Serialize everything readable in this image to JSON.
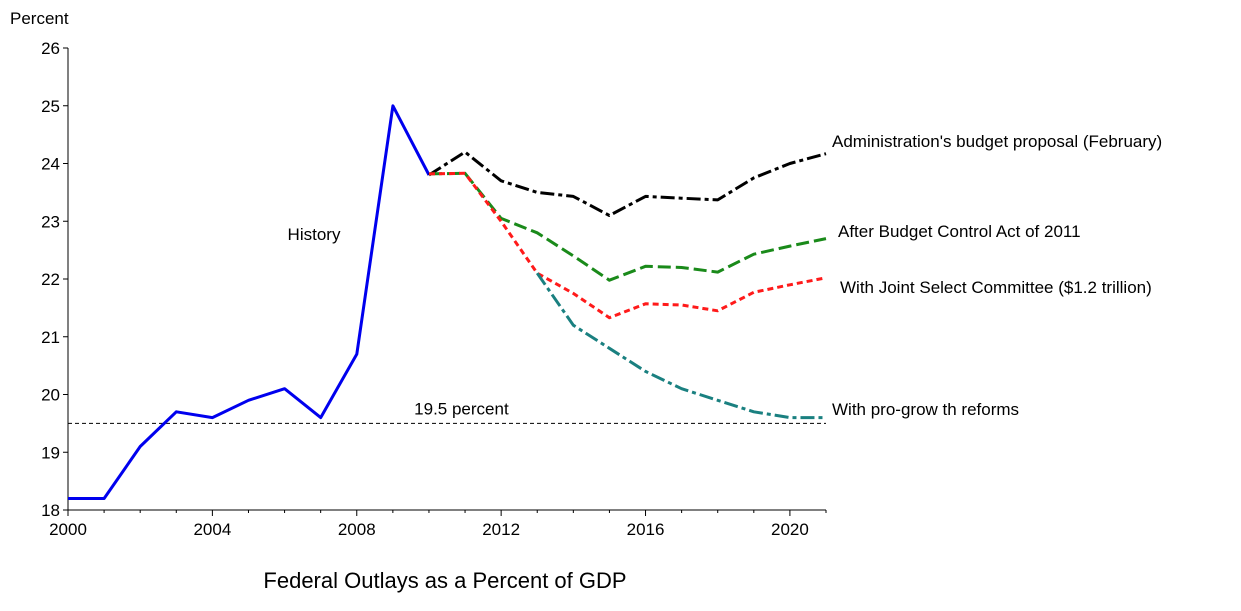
{
  "caption": "Federal Outlays as a Percent of GDP",
  "chart_data": {
    "type": "line",
    "ylabel": "Percent",
    "xlim": [
      2000,
      2021
    ],
    "ylim": [
      18,
      26
    ],
    "x_ticks": [
      2000,
      2004,
      2008,
      2012,
      2016,
      2020
    ],
    "x_tick_labels": [
      "2000",
      "2004",
      "2008",
      "2012",
      "2016",
      "2020"
    ],
    "y_ticks": [
      18,
      19,
      20,
      21,
      22,
      23,
      24,
      25,
      26
    ],
    "y_tick_labels": [
      "18",
      "19",
      "20",
      "21",
      "22",
      "23",
      "24",
      "25",
      "26"
    ],
    "grid": false,
    "reference_line": {
      "value": 19.5,
      "label": "19.5 percent",
      "color": "#000000"
    },
    "series": [
      {
        "name": "History",
        "color": "#0000ee",
        "style": "solid",
        "x": [
          2000,
          2001,
          2002,
          2003,
          2004,
          2005,
          2006,
          2007,
          2008,
          2009,
          2010
        ],
        "values": [
          18.2,
          18.2,
          19.1,
          19.7,
          19.6,
          19.9,
          20.1,
          19.6,
          20.7,
          25.0,
          23.8
        ]
      },
      {
        "name": "Administration's budget proposal (February)",
        "color": "#000000",
        "style": "dashdot",
        "x": [
          2010,
          2011,
          2012,
          2013,
          2014,
          2015,
          2016,
          2017,
          2018,
          2019,
          2020,
          2021
        ],
        "values": [
          23.8,
          24.2,
          23.7,
          23.5,
          23.43,
          23.1,
          23.43,
          23.4,
          23.37,
          23.75,
          24.0,
          24.17
        ]
      },
      {
        "name": "After Budget Control Act of 2011",
        "color": "#1a8a1a",
        "style": "dashed",
        "x": [
          2010,
          2011,
          2012,
          2013,
          2014,
          2015,
          2016,
          2017,
          2018,
          2019,
          2020,
          2021
        ],
        "values": [
          23.82,
          23.83,
          23.05,
          22.8,
          22.4,
          21.98,
          22.22,
          22.2,
          22.12,
          22.43,
          22.57,
          22.7
        ]
      },
      {
        "name": "With Joint Select Committee ($1.2 trillion)",
        "color": "#ff1a1a",
        "style": "dotted",
        "x": [
          2010,
          2011,
          2012,
          2013,
          2014,
          2015,
          2016,
          2017,
          2018,
          2019,
          2020,
          2021
        ],
        "values": [
          23.82,
          23.83,
          23.0,
          22.1,
          21.75,
          21.33,
          21.57,
          21.55,
          21.45,
          21.77,
          21.9,
          22.02
        ]
      },
      {
        "name": "With pro-growth reforms",
        "color": "#1a8080",
        "style": "dashdot",
        "x": [
          2013,
          2014,
          2015,
          2016,
          2017,
          2018,
          2019,
          2020,
          2021
        ],
        "values": [
          22.1,
          21.2,
          20.8,
          20.4,
          20.1,
          19.9,
          19.7,
          19.6,
          19.6
        ]
      }
    ],
    "annotations": [
      {
        "text": "History",
        "series": "History"
      },
      {
        "text": "Administration's budget proposal (February)",
        "series": "Administration's budget proposal (February)"
      },
      {
        "text": "After Budget Control Act of 2011",
        "series": "After Budget Control Act of 2011"
      },
      {
        "text": "With Joint Select Committee ($1.2 trillion)",
        "series": "With Joint Select Committee ($1.2 trillion)"
      },
      {
        "text": "With pro-grow th reforms",
        "series": "With pro-growth reforms"
      }
    ]
  }
}
